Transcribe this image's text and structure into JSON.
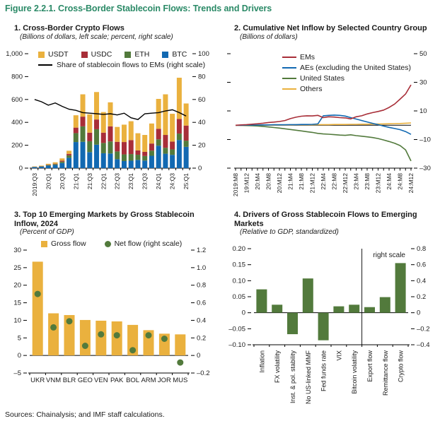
{
  "figure": {
    "title": "Figure 2.2.1. Cross-Border Stablecoin Flows: Trends and Drivers",
    "sources": "Sources: Chainalysis; and IMF staff calculations.",
    "title_color": "#2B8A67"
  },
  "palette": {
    "yellow": "#EAB13E",
    "red": "#A82E38",
    "green": "#527A3C",
    "blue": "#1269B2",
    "black": "#000000"
  },
  "chart_data": [
    {
      "number_title": "1. Cross-Border Crypto Flows",
      "subtitle": "(Billions of dollars, left scale; percent, right scale)",
      "type": "bar",
      "stacked": true,
      "categories": [
        "2019:Q3",
        "2019:Q4",
        "2020:Q1",
        "2020:Q2",
        "2020:Q3",
        "2020:Q4",
        "2021:Q1",
        "2021:Q2",
        "2021:Q3",
        "2021:Q4",
        "2022:Q1",
        "2022:Q2",
        "2022:Q3",
        "2022:Q4",
        "2023:Q1",
        "2023:Q2",
        "2023:Q3",
        "2023:Q4",
        "2024:Q1",
        "2024:Q2",
        "2024:Q3",
        "2024:Q4",
        "2025:Q1"
      ],
      "xtick_labels": [
        "2019:Q3",
        "20:Q1",
        "20:Q3",
        "21:Q1",
        "21:Q3",
        "22:Q1",
        "22:Q3",
        "23:Q1",
        "23:Q3",
        "24:Q1",
        "24:Q3",
        "25:Q1"
      ],
      "series": [
        {
          "name": "USDT",
          "color": "yellow",
          "values": [
            3,
            4,
            8,
            12,
            20,
            27,
            108,
            195,
            160,
            240,
            180,
            210,
            130,
            152,
            165,
            150,
            148,
            175,
            261,
            355,
            243,
            360,
            193
          ]
        },
        {
          "name": "USDC",
          "color": "red",
          "values": [
            1,
            2,
            3,
            4,
            8,
            13,
            48,
            85,
            75,
            85,
            90,
            132,
            84,
            108,
            122,
            38,
            36,
            62,
            92,
            112,
            68,
            128,
            132
          ]
        },
        {
          "name": "ETH",
          "color": "green",
          "values": [
            2,
            3,
            5,
            7,
            12,
            22,
            78,
            135,
            95,
            135,
            90,
            105,
            68,
            58,
            58,
            45,
            40,
            45,
            56,
            52,
            48,
            56,
            54
          ]
        },
        {
          "name": "BTC",
          "color": "blue",
          "values": [
            9,
            13,
            22,
            28,
            45,
            90,
            228,
            230,
            140,
            205,
            130,
            128,
            78,
            62,
            65,
            72,
            66,
            108,
            196,
            126,
            116,
            246,
            186
          ]
        }
      ],
      "stack_bottom_to_top": [
        "BTC",
        "ETH",
        "USDC",
        "USDT"
      ],
      "line_series": {
        "name": "Share of stablecoin flows to EMs (right scale)",
        "color": "black",
        "values": [
          60,
          58,
          55,
          57,
          54,
          51.5,
          50.5,
          48.5,
          48,
          47.5,
          47,
          47.5,
          46.5,
          48,
          44,
          42.5,
          47.5,
          48,
          48.5,
          50,
          51,
          48.5,
          45.5
        ]
      },
      "left_axis": {
        "min": 0,
        "max": 1000,
        "tick_values": [
          0,
          200,
          400,
          600,
          800,
          1000
        ],
        "tick_labels": [
          "0",
          "200",
          "400",
          "600",
          "800",
          "1,000"
        ]
      },
      "right_axis": {
        "min": 0,
        "max": 100,
        "tick_values": [
          0,
          20,
          40,
          60,
          80,
          100
        ],
        "tick_labels": [
          "0",
          "20",
          "40",
          "60",
          "80",
          "100"
        ]
      }
    },
    {
      "number_title": "2. Cumulative Net Inflow by Selected Country Group",
      "subtitle": "(Billions of dollars)",
      "type": "line",
      "x_labels": [
        "2019:M8",
        "19:M12",
        "20:M4",
        "20:M8",
        "20:M12",
        "21:M4",
        "21:M8",
        "21:M12",
        "22:M4",
        "22:M8",
        "22:M12",
        "23:M4",
        "23:M8",
        "23:M12",
        "24:M4",
        "24:M8",
        "24:M12"
      ],
      "points_per_label": 2,
      "series": [
        {
          "name": "EMs",
          "color": "red",
          "values": [
            0,
            0.2,
            0.4,
            0.7,
            1,
            1.4,
            1.9,
            2.2,
            2.6,
            3.3,
            4.6,
            5.6,
            6.3,
            6.6,
            6.5,
            6.9,
            5.3,
            5.9,
            5.7,
            5.3,
            5.1,
            4.4,
            5.9,
            6.6,
            7.9,
            8.8,
            9.6,
            10.6,
            12.4,
            14.8,
            18.2,
            21.8,
            28.2
          ]
        },
        {
          "name": "AEs (excluding the United States)",
          "color": "blue",
          "values": [
            0,
            0,
            0.1,
            0.1,
            0.1,
            0.2,
            0.2,
            0.3,
            0.3,
            0.3,
            0.4,
            0.4,
            0.5,
            0.5,
            0.6,
            0.9,
            6.6,
            6.9,
            7.1,
            6.9,
            6.4,
            5.3,
            4.3,
            3.3,
            2.3,
            1.3,
            0.4,
            -0.6,
            -1.5,
            -2.3,
            -3.1,
            -4.4,
            -6.4
          ]
        },
        {
          "name": "United States",
          "color": "green",
          "values": [
            0,
            -0.1,
            -0.2,
            -0.3,
            -0.5,
            -0.8,
            -1.2,
            -1.6,
            -2,
            -2.5,
            -3,
            -3.5,
            -4,
            -4.5,
            -5,
            -5.7,
            -6.1,
            -6.3,
            -6.6,
            -6.9,
            -7.1,
            -6.7,
            -7.3,
            -7.7,
            -8.1,
            -8.6,
            -9.3,
            -10.3,
            -11.4,
            -12.6,
            -14.2,
            -17.2,
            -25
          ]
        },
        {
          "name": "Others",
          "color": "yellow",
          "values": [
            0,
            0,
            0,
            0,
            0.1,
            0.1,
            0.1,
            0.1,
            0.2,
            0.2,
            0.2,
            0.3,
            0.3,
            0.3,
            0.3,
            0.4,
            0.4,
            0.4,
            0.5,
            0.5,
            0.5,
            0.6,
            0.6,
            0.7,
            0.7,
            0.8,
            0.8,
            0.9,
            1,
            1.1,
            1.2,
            1.4,
            1.6
          ]
        }
      ],
      "right_axis": {
        "min": -30,
        "max": 50,
        "tick_values": [
          -30,
          -10,
          10,
          30,
          50
        ],
        "tick_labels": [
          "–30",
          "–10",
          "10",
          "30",
          "50"
        ]
      }
    },
    {
      "number_title": "3. Top 10 Emerging Markets by Gross Stablecoin Inflow, 2024",
      "subtitle": "(Percent of GDP)",
      "type": "bar",
      "categories": [
        "UKR",
        "VNM",
        "BLR",
        "GEO",
        "VEN",
        "PAK",
        "BOL",
        "ARM",
        "JOR",
        "MUS"
      ],
      "legend": [
        {
          "label": "Gross flow",
          "marker": "square",
          "color": "yellow"
        },
        {
          "label": "Net flow (right scale)",
          "marker": "dot",
          "color": "green"
        }
      ],
      "bars": [
        26.7,
        12,
        11.5,
        10.1,
        9.9,
        9.7,
        8.7,
        7.2,
        6.2,
        6
      ],
      "dots_right_scale": [
        0.7,
        0.32,
        0.39,
        0.11,
        0.24,
        0.23,
        0.06,
        0.23,
        0.19,
        -0.08
      ],
      "left_axis": {
        "min": -5,
        "max": 30,
        "tick_values": [
          -5,
          0,
          5,
          10,
          15,
          20,
          25,
          30
        ],
        "tick_labels": [
          "–5",
          "0",
          "5",
          "10",
          "15",
          "20",
          "25",
          "30"
        ]
      },
      "right_axis": {
        "min": -0.2,
        "max": 1.2,
        "tick_values": [
          -0.2,
          0,
          0.2,
          0.4,
          0.6,
          0.8,
          1,
          1.2
        ],
        "tick_labels": [
          "–0.2",
          "0",
          "0.2",
          "0.4",
          "0.6",
          "0.8",
          "1.0",
          "1.2"
        ]
      }
    },
    {
      "number_title": "4. Drivers of Gross Stablecoin Flows to Emerging Markets",
      "subtitle": "(Relative to GDP, standardized)",
      "type": "bar",
      "bar_color": "green",
      "categories": [
        "Inflation",
        "FX volatility",
        "Inst. & pol. stability",
        "No US-linked MMF",
        "Fed funds rate",
        "VIX",
        "Bitcoin volatility",
        "Export flow",
        "Remittance flow",
        "Crypto flow"
      ],
      "values": [
        0.073,
        0.025,
        -0.067,
        0.107,
        -0.086,
        0.02,
        0.025,
        0.07,
        0.195,
        0.62
      ],
      "right_scale_start_index": 7,
      "right_scale_label": "right scale",
      "left_axis": {
        "min": -0.1,
        "max": 0.2,
        "tick_values": [
          0.2,
          0.15,
          0.1,
          0.05,
          0,
          -0.05,
          -0.1
        ],
        "tick_labels": [
          "0.20",
          "0.15",
          "0.10",
          "0.05",
          "0",
          "–0.05",
          "–0.10"
        ]
      },
      "right_axis": {
        "min": -0.4,
        "max": 0.8,
        "tick_values": [
          0.8,
          0.6,
          0.4,
          0.2,
          0,
          -0.2,
          -0.4
        ],
        "tick_labels": [
          "0.8",
          "0.6",
          "0.4",
          "0.2",
          "0",
          "–0.2",
          "–0.4"
        ]
      }
    }
  ]
}
